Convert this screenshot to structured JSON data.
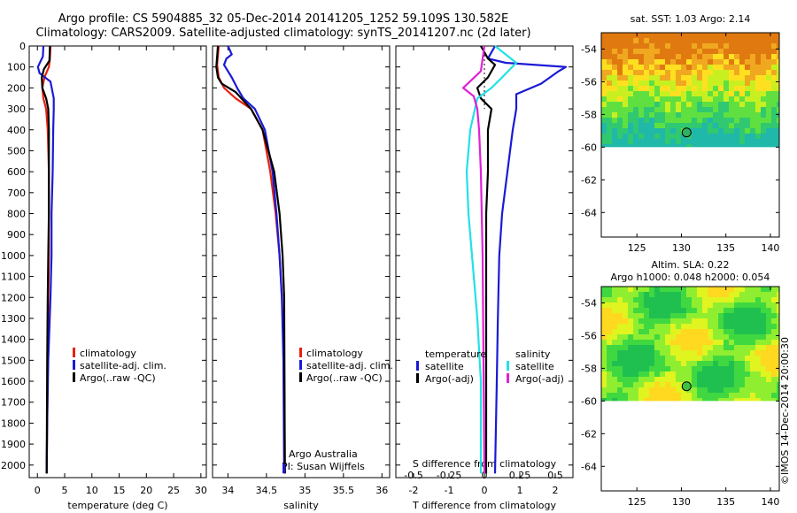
{
  "header": {
    "title_line1": "Argo profile: CS 5904885_32 05-Dec-2014 20141205_1252 59.109S 130.582E",
    "title_line2": "Climatology: CARS2009. Satellite-adjusted climatology: synTS_20141207.nc (2d later)"
  },
  "credit": "©IMOS 14-Dec-2014 20:00:30",
  "colors": {
    "red": "#e8200e",
    "blue": "#1a1ad6",
    "black": "#000000",
    "cyan": "#22e0e8",
    "magenta": "#e020d8"
  },
  "chart_data": [
    {
      "id": "temperature",
      "type": "line",
      "xlabel": "temperature (deg C)",
      "ylabel": "",
      "xlim": [
        -1.5,
        31
      ],
      "ylim": [
        2060,
        0
      ],
      "xticks": [
        0,
        5,
        10,
        15,
        20,
        25,
        30
      ],
      "xticklabels": [
        "0",
        "5",
        "10",
        "15",
        "20",
        "25",
        "30"
      ],
      "yticks": [
        0,
        100,
        200,
        300,
        400,
        500,
        600,
        700,
        800,
        900,
        1000,
        1100,
        1200,
        1300,
        1400,
        1500,
        1600,
        1700,
        1800,
        1900,
        2000
      ],
      "legend": {
        "position": "lower-middle",
        "entries": [
          "climatology",
          "satellite-adj. clim.",
          "Argo(..raw -QC)"
        ]
      },
      "series": [
        {
          "name": "climatology",
          "color": "red",
          "x": [
            2.4,
            2.3,
            2.1,
            1.3,
            0.9,
            1.1,
            1.6,
            1.9,
            2.1,
            2.1,
            2.1,
            2.0,
            1.9,
            1.8,
            1.7
          ],
          "y": [
            0,
            60,
            100,
            150,
            200,
            250,
            300,
            400,
            600,
            800,
            1000,
            1200,
            1500,
            1800,
            2040
          ]
        },
        {
          "name": "satellite-adj. clim.",
          "color": "blue",
          "x": [
            1.1,
            1.0,
            0.1,
            0.4,
            2.4,
            3.0,
            3.0,
            2.9,
            2.8,
            2.6,
            2.6,
            2.4,
            2.0,
            1.8,
            1.7
          ],
          "y": [
            0,
            50,
            100,
            130,
            170,
            250,
            300,
            400,
            600,
            800,
            1000,
            1200,
            1500,
            1800,
            2040
          ]
        },
        {
          "name": "Argo(..raw -QC)",
          "color": "black",
          "x": [
            2.3,
            2.2,
            1.2,
            0.8,
            0.9,
            1.6,
            2.0,
            2.1,
            2.1,
            2.1,
            2.0,
            1.9,
            1.8,
            1.7
          ],
          "y": [
            0,
            70,
            110,
            150,
            200,
            250,
            300,
            400,
            600,
            800,
            1000,
            1200,
            1500,
            2040
          ]
        }
      ]
    },
    {
      "id": "salinity",
      "type": "line",
      "xlabel": "salinity",
      "ylabel": "",
      "xlim": [
        33.8,
        36.1
      ],
      "ylim": [
        2060,
        0
      ],
      "xticks": [
        34,
        34.5,
        35,
        35.5,
        36
      ],
      "xticklabels": [
        "34",
        "34.5",
        "35",
        "35.5",
        "36"
      ],
      "yticks": [],
      "legend": {
        "position": "lower-right",
        "entries": [
          "climatology",
          "satellite-adj. clim.",
          "Argo(..raw -QC)"
        ]
      },
      "annotations": [
        "Argo Australia",
        "PI: Susan Wijffels"
      ],
      "series": [
        {
          "name": "climatology",
          "color": "red",
          "x": [
            33.88,
            33.86,
            33.88,
            33.95,
            34.1,
            34.3,
            34.45,
            34.55,
            34.62,
            34.67,
            34.7,
            34.73,
            34.74
          ],
          "y": [
            0,
            90,
            150,
            200,
            250,
            300,
            400,
            600,
            800,
            1000,
            1200,
            1500,
            2040
          ]
        },
        {
          "name": "satellite-adj. clim.",
          "color": "blue",
          "x": [
            34.0,
            34.05,
            33.98,
            33.95,
            34.05,
            34.12,
            34.2,
            34.35,
            34.48,
            34.58,
            34.63,
            34.67,
            34.7,
            34.72,
            34.73
          ],
          "y": [
            0,
            40,
            60,
            90,
            150,
            200,
            250,
            300,
            400,
            600,
            800,
            1000,
            1200,
            1500,
            2040
          ]
        },
        {
          "name": "Argo(..raw -QC)",
          "color": "black",
          "x": [
            33.87,
            33.85,
            33.87,
            33.92,
            34.1,
            34.3,
            34.45,
            34.6,
            34.67,
            34.71,
            34.73,
            34.74
          ],
          "y": [
            0,
            100,
            150,
            180,
            220,
            300,
            400,
            600,
            800,
            1000,
            1200,
            2040
          ]
        }
      ]
    },
    {
      "id": "difference",
      "type": "line",
      "xlabel": "T difference from climatology",
      "x2label": "S difference from climatology",
      "ylabel": "",
      "xlim": [
        -2.5,
        2.5
      ],
      "ylim": [
        2060,
        0
      ],
      "xticks": [
        -2,
        -1,
        0,
        1,
        2
      ],
      "xticklabels": [
        "-2",
        "-1",
        "0",
        "1",
        "2"
      ],
      "x2ticklabels": [
        "-0.5",
        "-0.25",
        "0",
        "0.25",
        "0.5"
      ],
      "yticks": [],
      "legend": {
        "position": "lower",
        "entries": [
          "temperature",
          "satellite",
          "Argo(-adj)",
          "salinity",
          "satellite",
          "Argo(-adj)"
        ]
      },
      "series": [
        {
          "name": "satellite",
          "color": "blue",
          "x": [
            0.3,
            0.1,
            0.6,
            2.3,
            2.1,
            1.6,
            0.9,
            0.9,
            0.8,
            0.65,
            0.5,
            0.42,
            0.38,
            0.35,
            0.3
          ],
          "y": [
            0,
            60,
            80,
            100,
            120,
            180,
            230,
            300,
            400,
            600,
            800,
            1000,
            1300,
            1600,
            2040
          ]
        },
        {
          "name": "Argo(-adj)",
          "color": "black",
          "x": [
            -0.1,
            0.1,
            0.3,
            0.1,
            -0.2,
            -0.1,
            0.2,
            0.1,
            0.1,
            0.05,
            0.05,
            0.05
          ],
          "y": [
            0,
            60,
            90,
            150,
            200,
            250,
            300,
            400,
            600,
            800,
            1200,
            2040
          ]
        },
        {
          "name": "satellite",
          "color": "cyan",
          "x": [
            0.3,
            0.6,
            0.9,
            0.5,
            0.2,
            -0.2,
            -0.4,
            -0.5,
            -0.45,
            -0.35,
            -0.2,
            -0.1,
            -0.1
          ],
          "y": [
            0,
            40,
            80,
            150,
            200,
            250,
            400,
            600,
            800,
            1000,
            1300,
            1600,
            2040
          ]
        },
        {
          "name": "Argo(-adj)",
          "color": "magenta",
          "x": [
            0.0,
            -0.1,
            -0.6,
            -0.3,
            -0.2,
            -0.15,
            -0.1,
            -0.05,
            0.0
          ],
          "y": [
            0,
            120,
            200,
            240,
            300,
            400,
            600,
            1000,
            2040
          ]
        }
      ]
    }
  ],
  "maps": [
    {
      "id": "sst-map",
      "title": "sat. SST: 1.03 Argo: 2.14",
      "xlim": [
        121,
        141
      ],
      "ylim": [
        -65.5,
        -53
      ],
      "xticks": [
        125,
        130,
        135,
        140
      ],
      "yticks": [
        -54,
        -56,
        -58,
        -60,
        -62,
        -64
      ],
      "xticklabels": [
        "125",
        "130",
        "135",
        "140"
      ],
      "yticklabels": [
        "-54",
        "-56",
        "-58",
        "-60",
        "-62",
        "-64"
      ],
      "data_limit_lat": -60,
      "profile_lon": 130.58,
      "profile_lat": -59.1
    },
    {
      "id": "sla-map",
      "title_line1": "Altim. SLA: 0.22",
      "title_line2": "Argo h1000: 0.048 h2000: 0.054",
      "xlim": [
        121,
        141
      ],
      "ylim": [
        -65.5,
        -53
      ],
      "xticks": [
        125,
        130,
        135,
        140
      ],
      "yticks": [
        -54,
        -56,
        -58,
        -60,
        -62,
        -64
      ],
      "xticklabels": [
        "125",
        "130",
        "135",
        "140"
      ],
      "yticklabels": [
        "-54",
        "-56",
        "-58",
        "-60",
        "-62",
        "-64"
      ],
      "data_limit_lat": -60,
      "profile_lon": 130.58,
      "profile_lat": -59.1
    }
  ]
}
